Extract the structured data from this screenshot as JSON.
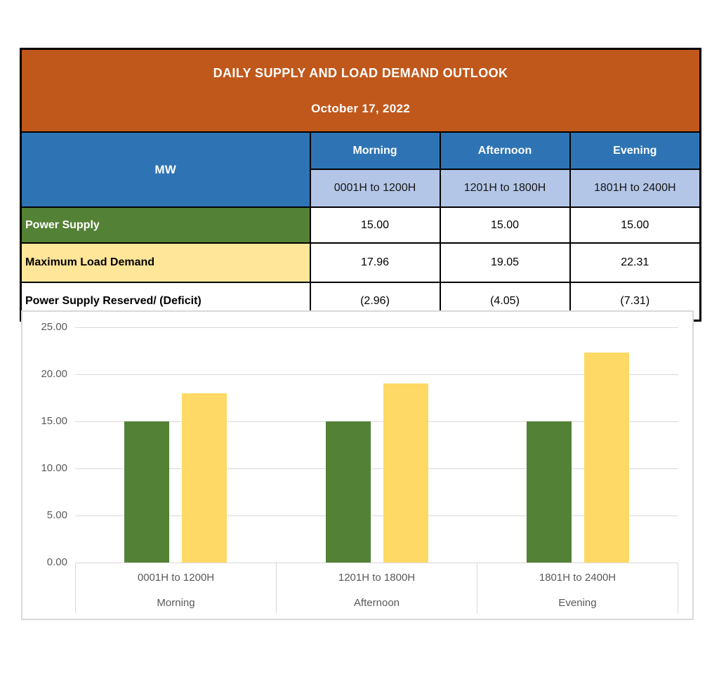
{
  "table": {
    "title": "DAILY SUPPLY AND LOAD DEMAND OUTLOOK",
    "date": "October 17, 2022",
    "unit_label": "MW",
    "columns": [
      {
        "period": "Morning",
        "time": "0001H to 1200H"
      },
      {
        "period": "Afternoon",
        "time": "1201H to 1800H"
      },
      {
        "period": "Evening",
        "time": "1801H to 2400H"
      }
    ],
    "rows": [
      {
        "label": "Power Supply",
        "values": [
          "15.00",
          "15.00",
          "15.00"
        ]
      },
      {
        "label": "Maximum Load Demand",
        "values": [
          "17.96",
          "19.05",
          "22.31"
        ]
      },
      {
        "label": "Power Supply Reserved/ (Deficit)",
        "values": [
          "(2.96)",
          "(4.05)",
          "(7.31)"
        ]
      }
    ]
  },
  "chart_data": {
    "type": "bar",
    "categories": [
      "0001H to 1200H",
      "1201H to 1800H",
      "1801H to 2400H"
    ],
    "category_groups": [
      "Morning",
      "Afternoon",
      "Evening"
    ],
    "series": [
      {
        "name": "Power Supply",
        "color": "#538135",
        "values": [
          15.0,
          15.0,
          15.0
        ]
      },
      {
        "name": "Maximum Load Demand",
        "color": "#FFD966",
        "values": [
          17.96,
          19.05,
          22.31
        ]
      }
    ],
    "title": "",
    "xlabel": "",
    "ylabel": "",
    "ylim": [
      0,
      25
    ],
    "y_tick_step": 5,
    "y_tick_labels": [
      "0.00",
      "5.00",
      "10.00",
      "15.00",
      "20.00",
      "25.00"
    ],
    "grid": true,
    "legend": "none"
  },
  "colors": {
    "title_band_orange": "#C1581B",
    "header_blue": "#2E74B5",
    "subheader_light_blue": "#B4C6E7",
    "supply_row_green": "#538135",
    "demand_row_yellow": "#FFE699",
    "bar_green": "#538135",
    "bar_yellow": "#FFD966",
    "axis_text_gray": "#595959",
    "gridline_gray": "#D9D9D9"
  }
}
